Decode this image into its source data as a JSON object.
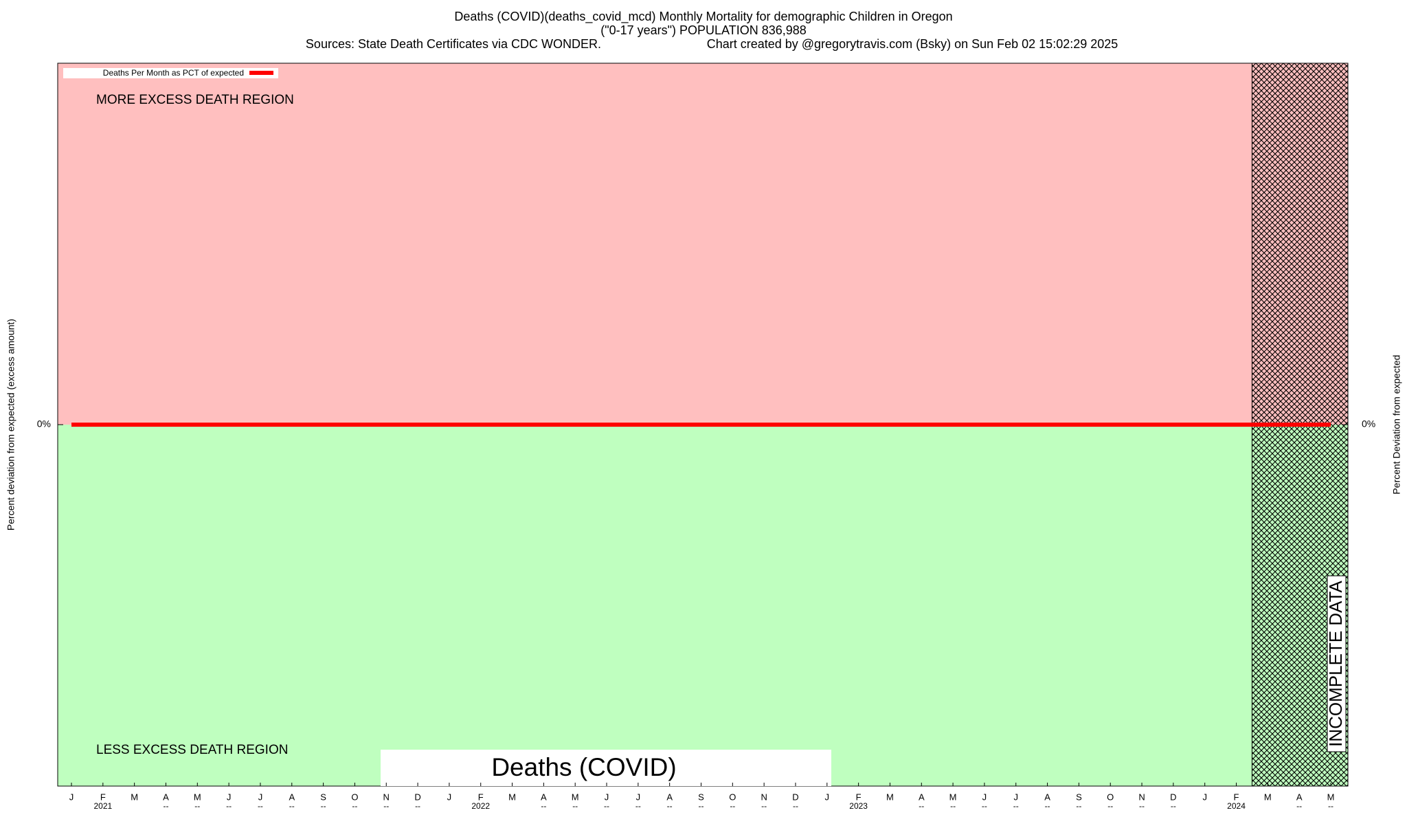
{
  "chart_data": {
    "type": "line",
    "title": [
      "Deaths (COVID)(deaths_covid_mcd) Monthly Mortality for demographic Children in Oregon",
      "(\"0-17 years\") POPULATION 836,988"
    ],
    "sources": "Sources: State Death Certificates via CDC WONDER.",
    "credit": "Chart created by @gregorytravis.com (Bsky) on Sun Feb 02 15:02:29 2025",
    "y_label": "Percent deviation from expected (excess amount)",
    "y2_label": "Percent Deviation from expected",
    "annotations": {
      "upper": "MORE EXCESS DEATH REGION",
      "lower": "LESS EXCESS DEATH REGION",
      "incomplete": "INCOMPLETE DATA",
      "cause": "Deaths (COVID)"
    },
    "categories": [
      "J",
      "F",
      "M",
      "A",
      "M",
      "J",
      "J",
      "A",
      "S",
      "O",
      "N",
      "D",
      "J",
      "F",
      "M",
      "A",
      "M",
      "J",
      "J",
      "A",
      "S",
      "O",
      "N",
      "D",
      "J",
      "F",
      "M",
      "A",
      "M",
      "J",
      "J",
      "A",
      "S",
      "O",
      "N",
      "D",
      "J",
      "F",
      "M",
      "A",
      "M"
    ],
    "category_sublabels": [
      null,
      "2021",
      null,
      "--",
      "--",
      "--",
      "--",
      "--",
      "--",
      "--",
      "--",
      "--",
      null,
      "2022",
      null,
      "--",
      "--",
      "--",
      "--",
      "--",
      "--",
      "--",
      "--",
      "--",
      null,
      "2023",
      null,
      "--",
      "--",
      "--",
      "--",
      "--",
      "--",
      "--",
      "--",
      "--",
      null,
      "2024",
      null,
      "--",
      "--"
    ],
    "series": [
      {
        "name": "Deaths Per Month as PCT of expected",
        "color": "#ff0000",
        "values": [
          0,
          0,
          0,
          0,
          0,
          0,
          0,
          0,
          0,
          0,
          0,
          0,
          0,
          0,
          0,
          0,
          0,
          0,
          0,
          0,
          0,
          0,
          0,
          0,
          0,
          0,
          0,
          0,
          0,
          0,
          0,
          0,
          0,
          0,
          0,
          0,
          0,
          0,
          0,
          0,
          0
        ]
      }
    ],
    "ylim": [
      -100,
      100
    ],
    "yticks": [
      {
        "value": 0,
        "label": "0%"
      }
    ],
    "y2lim": [
      -100,
      100
    ],
    "y2ticks": [
      {
        "value": 0,
        "label": "0%"
      }
    ],
    "upper_color": "#ffbfbf",
    "lower_color": "#bfffbf"
  }
}
